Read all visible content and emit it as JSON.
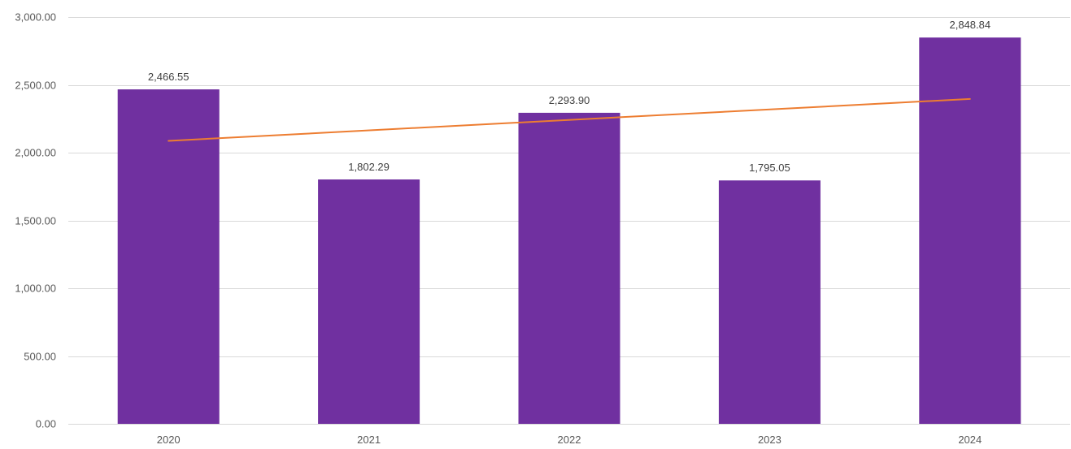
{
  "chart_data": {
    "type": "bar",
    "categories": [
      "2020",
      "2021",
      "2022",
      "2023",
      "2024"
    ],
    "values": [
      2466.55,
      1802.29,
      2293.9,
      1795.05,
      2848.84
    ],
    "data_labels": [
      "2,466.55",
      "1,802.29",
      "2,293.90",
      "1,795.05",
      "2,848.84"
    ],
    "ylim": [
      0,
      3000
    ],
    "yticks": [
      0,
      500,
      1000,
      1500,
      2000,
      2500,
      3000
    ],
    "ytick_labels": [
      "0.00",
      "500.00",
      "1,000.00",
      "1,500.00",
      "2,000.00",
      "2,500.00",
      "3,000.00"
    ],
    "trendline": {
      "type": "linear",
      "start_value": 2087.0,
      "end_value": 2396.0
    },
    "grid": true,
    "legend": "none",
    "colors": {
      "bar": "#7030A0",
      "trendline": "#ED7D31",
      "grid": "#D9D9D9",
      "axis_text": "#595959"
    }
  }
}
